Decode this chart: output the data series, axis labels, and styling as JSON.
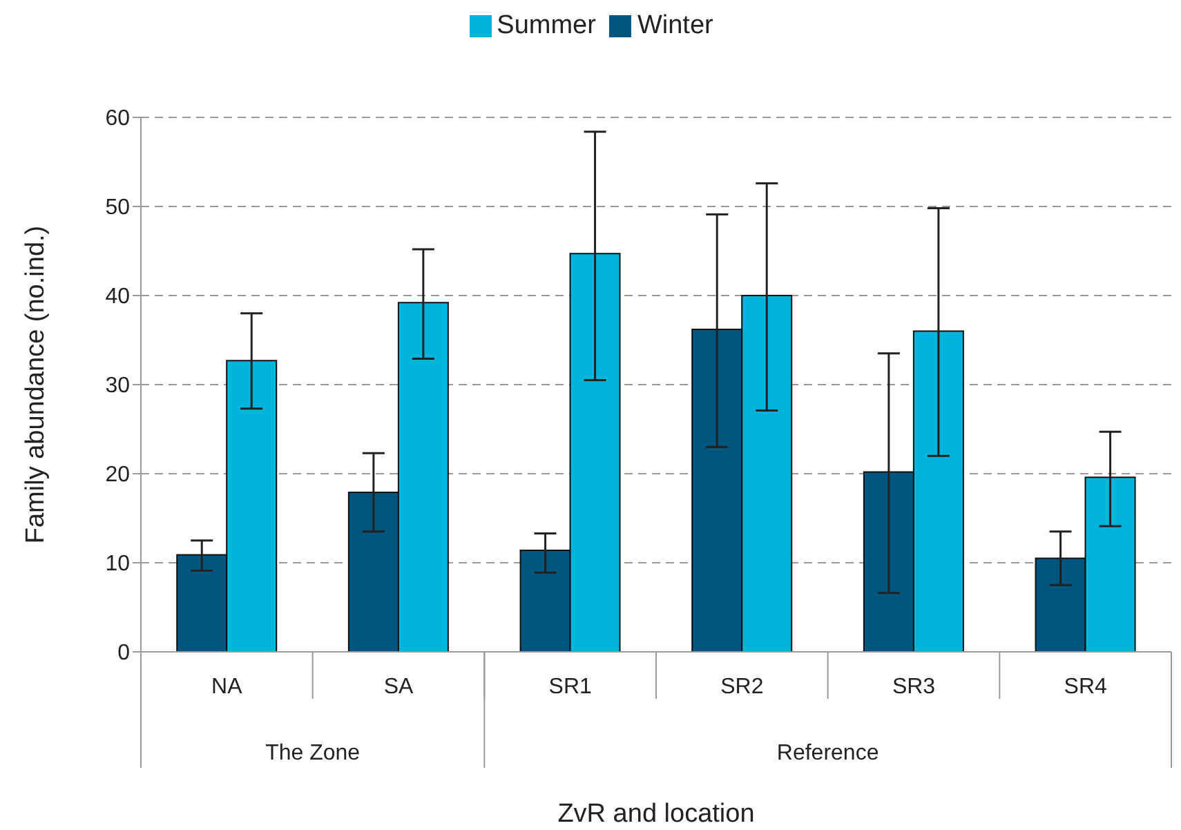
{
  "chart_data": {
    "type": "bar",
    "xlabel": "ZvR and location",
    "ylabel": "Family abundance (no.ind.)",
    "categories": [
      "NA",
      "SA",
      "SR1",
      "SR2",
      "SR3",
      "SR4"
    ],
    "series": [
      {
        "name": "Winter",
        "color": "#00567f",
        "values": [
          10.9,
          17.9,
          11.4,
          36.2,
          20.2,
          10.5
        ],
        "errors": [
          [
            9.1,
            12.5
          ],
          [
            13.5,
            22.3
          ],
          [
            8.9,
            13.3
          ],
          [
            23.0,
            49.1
          ],
          [
            6.6,
            33.5
          ],
          [
            7.5,
            13.5
          ]
        ]
      },
      {
        "name": "Summer",
        "color": "#00b4dc",
        "values": [
          32.7,
          39.2,
          44.7,
          40.0,
          36.0,
          19.6
        ],
        "errors": [
          [
            27.3,
            38.0
          ],
          [
            32.9,
            45.2
          ],
          [
            30.5,
            58.4
          ],
          [
            27.1,
            52.6
          ],
          [
            22.0,
            49.8
          ],
          [
            14.1,
            24.7
          ]
        ]
      }
    ],
    "annotations": [
      "The Zone",
      "Reference"
    ],
    "ylim": [
      0,
      60
    ],
    "yticks": [
      0,
      10,
      20,
      30,
      40,
      50,
      60
    ],
    "grid": "y",
    "legend": "top"
  }
}
